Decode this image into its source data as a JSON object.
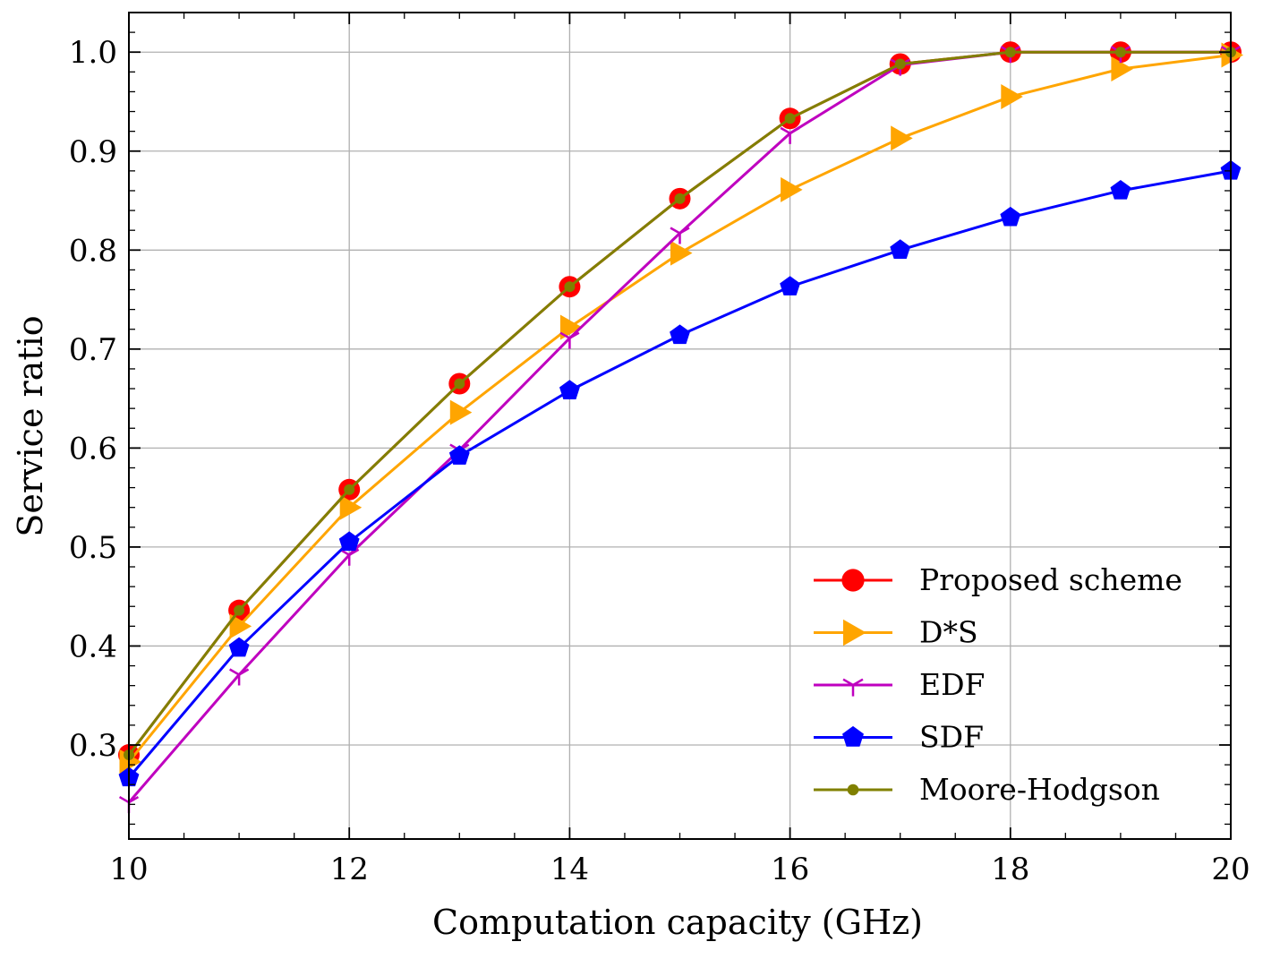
{
  "chart_data": {
    "type": "line",
    "title": "",
    "xlabel": "Computation capacity (GHz)",
    "ylabel": "Service ratio",
    "xlim": [
      10,
      20
    ],
    "ylim": [
      0.205,
      1.04
    ],
    "grid": true,
    "legend_position": "lower-right",
    "x": [
      10,
      11,
      12,
      13,
      14,
      15,
      16,
      17,
      18,
      19,
      20
    ],
    "xticks": [
      10,
      12,
      14,
      16,
      18,
      20
    ],
    "xtick_labels": [
      "10",
      "12",
      "14",
      "16",
      "18",
      "20"
    ],
    "yticks": [
      0.3,
      0.4,
      0.5,
      0.6,
      0.7,
      0.8,
      0.9,
      1.0
    ],
    "ytick_labels": [
      "0.3",
      "0.4",
      "0.5",
      "0.6",
      "0.7",
      "0.8",
      "0.9",
      "1.0"
    ],
    "series": [
      {
        "name": "Proposed scheme",
        "color": "#ff0000",
        "marker": "circle",
        "values": [
          0.29,
          0.436,
          0.558,
          0.665,
          0.763,
          0.852,
          0.933,
          0.988,
          1.0,
          1.0,
          1.0
        ]
      },
      {
        "name": "D*S",
        "color": "#ffa500",
        "marker": "triangle-right",
        "values": [
          0.283,
          0.42,
          0.54,
          0.636,
          0.722,
          0.797,
          0.861,
          0.913,
          0.955,
          0.983,
          0.997
        ]
      },
      {
        "name": "EDF",
        "color": "#bf00bf",
        "marker": "tri-down",
        "values": [
          0.242,
          0.371,
          0.492,
          0.598,
          0.711,
          0.817,
          0.918,
          0.987,
          1.0,
          1.0,
          1.0
        ]
      },
      {
        "name": "SDF",
        "color": "#0000ff",
        "marker": "pentagon",
        "values": [
          0.267,
          0.398,
          0.505,
          0.592,
          0.658,
          0.714,
          0.763,
          0.8,
          0.833,
          0.86,
          0.88
        ]
      },
      {
        "name": "Moore-Hodgson",
        "color": "#808000",
        "marker": "small-circle",
        "values": [
          0.29,
          0.436,
          0.558,
          0.665,
          0.763,
          0.852,
          0.933,
          0.988,
          1.0,
          1.0,
          1.0
        ]
      }
    ]
  }
}
